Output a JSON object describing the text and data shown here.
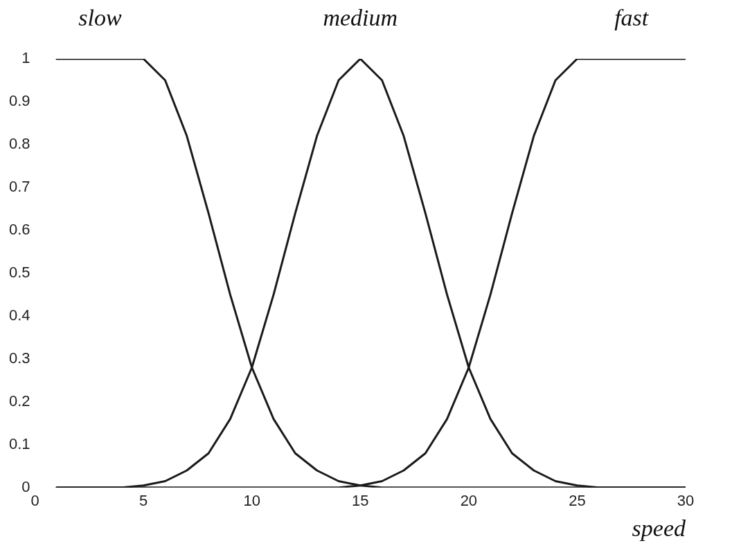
{
  "chart_data": {
    "type": "line",
    "xlabel": "speed",
    "x": [
      1,
      2,
      3,
      4,
      5,
      6,
      7,
      8,
      9,
      10,
      11,
      12,
      13,
      14,
      15,
      16,
      17,
      18,
      19,
      20,
      21,
      22,
      23,
      24,
      25,
      26,
      27,
      28,
      29,
      30
    ],
    "series": [
      {
        "name": "slow",
        "color": "#1a1a1a",
        "values": [
          1,
          1,
          1,
          1,
          1,
          0.95,
          0.82,
          0.64,
          0.45,
          0.28,
          0.16,
          0.08,
          0.04,
          0.015,
          0.005,
          0,
          0,
          0,
          0,
          0,
          0,
          0,
          0,
          0,
          0,
          0,
          0,
          0,
          0,
          0
        ]
      },
      {
        "name": "medium",
        "color": "#1a1a1a",
        "values": [
          0,
          0,
          0,
          0,
          0.005,
          0.015,
          0.04,
          0.08,
          0.16,
          0.28,
          0.45,
          0.64,
          0.82,
          0.95,
          1,
          0.95,
          0.82,
          0.64,
          0.45,
          0.28,
          0.16,
          0.08,
          0.04,
          0.015,
          0.005,
          0,
          0,
          0,
          0,
          0
        ]
      },
      {
        "name": "fast",
        "color": "#1a1a1a",
        "values": [
          0,
          0,
          0,
          0,
          0,
          0,
          0,
          0,
          0,
          0,
          0,
          0,
          0,
          0,
          0.005,
          0.015,
          0.04,
          0.08,
          0.16,
          0.28,
          0.45,
          0.64,
          0.82,
          0.95,
          1,
          1,
          1,
          1,
          1,
          1
        ]
      }
    ],
    "xlim": [
      0,
      30
    ],
    "xticks": [
      0,
      5,
      10,
      15,
      20,
      25,
      30
    ],
    "ylim": [
      0,
      1
    ],
    "yticks": [
      0,
      0.1,
      0.2,
      0.3,
      0.4,
      0.5,
      0.6,
      0.7,
      0.8,
      0.9,
      1
    ],
    "grid": false,
    "legend": false,
    "marker": "none",
    "line_style": "solid"
  }
}
